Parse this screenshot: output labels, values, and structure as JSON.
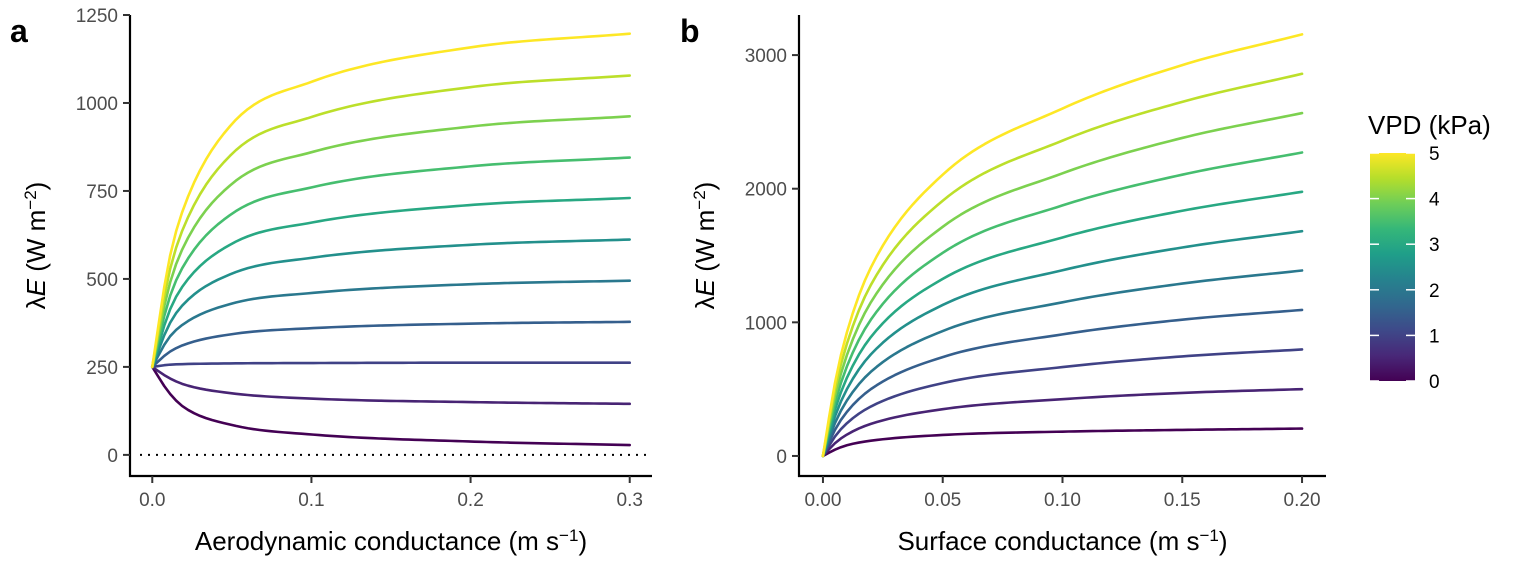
{
  "chart_data": [
    {
      "panel": "a",
      "type": "line",
      "xlabel": "Aerodynamic conductance (m s",
      "xlabel_sup": "−1",
      "xlabel_close": ")",
      "ylabel_prefix": "λ",
      "ylabel_var": "E",
      "ylabel_units": " (W m",
      "ylabel_sup": "−2",
      "ylabel_close": ")",
      "xlim": [
        -0.014,
        0.314
      ],
      "ylim": [
        -60,
        1250
      ],
      "xticks": [
        0.0,
        0.1,
        0.2,
        0.3
      ],
      "xtick_labels": [
        "0.0",
        "0.1",
        "0.2",
        "0.3"
      ],
      "yticks": [
        0,
        250,
        500,
        750,
        1000,
        1250
      ],
      "ytick_labels": [
        "0",
        "250",
        "500",
        "750",
        "1000",
        "1250"
      ],
      "reference_line": {
        "y": 0,
        "style": "dotted"
      },
      "grid": false,
      "series": [
        {
          "vpd": 0.0,
          "x": [
            0,
            0.01,
            0.02,
            0.05,
            0.1,
            0.2,
            0.3
          ],
          "y": [
            250,
            180,
            135,
            85,
            58,
            38,
            28
          ]
        },
        {
          "vpd": 0.5,
          "x": [
            0,
            0.01,
            0.02,
            0.05,
            0.1,
            0.2,
            0.3
          ],
          "y": [
            250,
            220,
            200,
            175,
            160,
            150,
            145
          ]
        },
        {
          "vpd": 1.0,
          "x": [
            0,
            0.01,
            0.02,
            0.05,
            0.1,
            0.2,
            0.3
          ],
          "y": [
            250,
            256,
            258,
            260,
            261,
            262,
            262
          ]
        },
        {
          "vpd": 1.5,
          "x": [
            0,
            0.01,
            0.02,
            0.05,
            0.1,
            0.2,
            0.3
          ],
          "y": [
            250,
            290,
            313,
            343,
            360,
            373,
            378
          ]
        },
        {
          "vpd": 2.0,
          "x": [
            0,
            0.01,
            0.02,
            0.05,
            0.1,
            0.2,
            0.3
          ],
          "y": [
            250,
            330,
            373,
            430,
            460,
            485,
            495
          ]
        },
        {
          "vpd": 2.5,
          "x": [
            0,
            0.01,
            0.02,
            0.05,
            0.1,
            0.2,
            0.3
          ],
          "y": [
            250,
            365,
            430,
            515,
            560,
            597,
            612
          ]
        },
        {
          "vpd": 3.0,
          "x": [
            0,
            0.01,
            0.02,
            0.05,
            0.1,
            0.2,
            0.3
          ],
          "y": [
            250,
            400,
            485,
            600,
            660,
            710,
            730
          ]
        },
        {
          "vpd": 3.5,
          "x": [
            0,
            0.01,
            0.02,
            0.05,
            0.1,
            0.2,
            0.3
          ],
          "y": [
            250,
            435,
            540,
            685,
            760,
            820,
            845
          ]
        },
        {
          "vpd": 4.0,
          "x": [
            0,
            0.01,
            0.02,
            0.05,
            0.1,
            0.2,
            0.3
          ],
          "y": [
            250,
            470,
            595,
            770,
            860,
            933,
            962
          ]
        },
        {
          "vpd": 4.5,
          "x": [
            0,
            0.01,
            0.02,
            0.05,
            0.1,
            0.2,
            0.3
          ],
          "y": [
            250,
            505,
            650,
            855,
            960,
            1045,
            1078
          ]
        },
        {
          "vpd": 5.0,
          "x": [
            0,
            0.01,
            0.02,
            0.05,
            0.1,
            0.2,
            0.3
          ],
          "y": [
            250,
            540,
            705,
            940,
            1060,
            1158,
            1197
          ]
        }
      ]
    },
    {
      "panel": "b",
      "type": "line",
      "xlabel": "Surface conductance (m s",
      "xlabel_sup": "−1",
      "xlabel_close": ")",
      "ylabel_prefix": "λ",
      "ylabel_var": "E",
      "ylabel_units": " (W m",
      "ylabel_sup": "−2",
      "ylabel_close": ")",
      "xlim": [
        -0.01,
        0.21
      ],
      "ylim": [
        -150,
        3300
      ],
      "xticks": [
        0.0,
        0.05,
        0.1,
        0.15,
        0.2
      ],
      "xtick_labels": [
        "0.00",
        "0.05",
        "0.10",
        "0.15",
        "0.20"
      ],
      "yticks": [
        0,
        1000,
        2000,
        3000
      ],
      "ytick_labels": [
        "0",
        "1000",
        "2000",
        "3000"
      ],
      "grid": false,
      "series": [
        {
          "vpd": 0.0,
          "x": [
            0,
            0.005,
            0.01,
            0.02,
            0.05,
            0.1,
            0.15,
            0.2
          ],
          "y": [
            0,
            47,
            80,
            114,
            157,
            182,
            195,
            205
          ]
        },
        {
          "vpd": 0.5,
          "x": [
            0,
            0.005,
            0.01,
            0.02,
            0.05,
            0.1,
            0.15,
            0.2
          ],
          "y": [
            0,
            95,
            160,
            240,
            350,
            425,
            472,
            500
          ]
        },
        {
          "vpd": 1.0,
          "x": [
            0,
            0.005,
            0.01,
            0.02,
            0.05,
            0.1,
            0.15,
            0.2
          ],
          "y": [
            0,
            145,
            245,
            370,
            545,
            665,
            745,
            797
          ]
        },
        {
          "vpd": 1.5,
          "x": [
            0,
            0.005,
            0.01,
            0.02,
            0.05,
            0.1,
            0.15,
            0.2
          ],
          "y": [
            0,
            195,
            330,
            500,
            740,
            910,
            1020,
            1093
          ]
        },
        {
          "vpd": 2.0,
          "x": [
            0,
            0.005,
            0.01,
            0.02,
            0.05,
            0.1,
            0.15,
            0.2
          ],
          "y": [
            0,
            245,
            415,
            630,
            935,
            1150,
            1290,
            1388
          ]
        },
        {
          "vpd": 2.5,
          "x": [
            0,
            0.005,
            0.01,
            0.02,
            0.05,
            0.1,
            0.15,
            0.2
          ],
          "y": [
            0,
            295,
            500,
            760,
            1130,
            1390,
            1560,
            1682
          ]
        },
        {
          "vpd": 3.0,
          "x": [
            0,
            0.005,
            0.01,
            0.02,
            0.05,
            0.1,
            0.15,
            0.2
          ],
          "y": [
            0,
            345,
            585,
            890,
            1325,
            1635,
            1835,
            1977
          ]
        },
        {
          "vpd": 3.5,
          "x": [
            0,
            0.005,
            0.01,
            0.02,
            0.05,
            0.1,
            0.15,
            0.2
          ],
          "y": [
            0,
            395,
            670,
            1020,
            1520,
            1875,
            2105,
            2271
          ]
        },
        {
          "vpd": 4.0,
          "x": [
            0,
            0.005,
            0.01,
            0.02,
            0.05,
            0.1,
            0.15,
            0.2
          ],
          "y": [
            0,
            445,
            755,
            1150,
            1715,
            2115,
            2380,
            2566
          ]
        },
        {
          "vpd": 4.5,
          "x": [
            0,
            0.005,
            0.01,
            0.02,
            0.05,
            0.1,
            0.15,
            0.2
          ],
          "y": [
            0,
            495,
            840,
            1280,
            1910,
            2360,
            2650,
            2860
          ]
        },
        {
          "vpd": 5.0,
          "x": [
            0,
            0.005,
            0.01,
            0.02,
            0.05,
            0.1,
            0.15,
            0.2
          ],
          "y": [
            0,
            545,
            925,
            1410,
            2105,
            2600,
            2925,
            3155
          ]
        }
      ]
    }
  ],
  "legend": {
    "title": "VPD (kPa)",
    "type": "colorbar",
    "placement": "right",
    "range": [
      0,
      5
    ],
    "ticks": [
      0,
      1,
      2,
      3,
      4,
      5
    ],
    "tick_labels": [
      "0",
      "1",
      "2",
      "3",
      "4",
      "5"
    ],
    "colormap": "viridis",
    "colors": [
      "#440154",
      "#482878",
      "#3e4989",
      "#31688e",
      "#26828e",
      "#1f9e89",
      "#35b779",
      "#6ece58",
      "#b5de2b",
      "#fde725"
    ]
  }
}
